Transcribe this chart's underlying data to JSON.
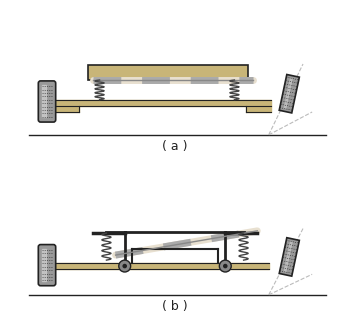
{
  "fig_width": 3.5,
  "fig_height": 3.2,
  "dpi": 100,
  "bg_color": "#ffffff",
  "tan_color": "#c8b578",
  "tan_light": "#d4c28a",
  "dark_color": "#222222",
  "wheel_dark": "#555555",
  "wheel_mid": "#999999",
  "wheel_light": "#cccccc",
  "spring_color": "#444444",
  "shock_color": "#dddddd",
  "label_a": "( a )",
  "label_b": "( b )",
  "label_fontsize": 9
}
